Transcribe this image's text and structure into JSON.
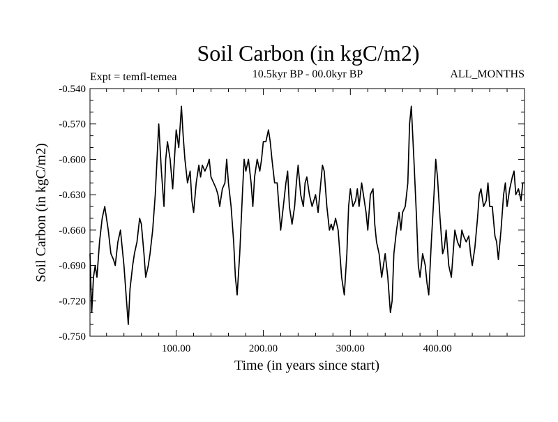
{
  "chart_data": {
    "type": "line",
    "title": "Soil Carbon (in kgC/m2)",
    "subtitle": "10.5kyr BP - 00.0kyr BP",
    "left_label": "Expt = temfl-temea",
    "right_label": "ALL_MONTHS",
    "xlabel": "Time (in years since start)",
    "ylabel": "Soil Carbon (in kgC/m2)",
    "xlim": [
      1,
      500
    ],
    "ylim": [
      -0.75,
      -0.54
    ],
    "x_ticks": [
      100,
      200,
      300,
      400
    ],
    "x_tick_labels": [
      "100.00",
      "200.00",
      "300.00",
      "400.00"
    ],
    "y_ticks": [
      -0.54,
      -0.57,
      -0.6,
      -0.63,
      -0.66,
      -0.69,
      -0.72,
      -0.75
    ],
    "y_tick_labels": [
      "-0.540",
      "-0.570",
      "-0.600",
      "-0.630",
      "-0.660",
      "-0.690",
      "-0.720",
      "-0.750"
    ],
    "series": [
      {
        "name": "Soil Carbon",
        "x": [
          1,
          3,
          5,
          7,
          9,
          12,
          15,
          18,
          20,
          22,
          25,
          28,
          30,
          33,
          36,
          38,
          40,
          43,
          45,
          47,
          50,
          52,
          55,
          58,
          60,
          63,
          65,
          68,
          70,
          73,
          76,
          78,
          80,
          83,
          86,
          88,
          90,
          93,
          96,
          98,
          100,
          103,
          106,
          108,
          110,
          113,
          116,
          118,
          120,
          123,
          126,
          128,
          130,
          133,
          136,
          138,
          140,
          143,
          146,
          148,
          150,
          153,
          156,
          158,
          160,
          163,
          166,
          168,
          170,
          173,
          176,
          178,
          180,
          183,
          186,
          188,
          190,
          193,
          196,
          198,
          200,
          203,
          206,
          208,
          210,
          213,
          216,
          218,
          220,
          223,
          226,
          228,
          230,
          233,
          236,
          238,
          240,
          243,
          246,
          248,
          250,
          253,
          256,
          258,
          260,
          263,
          266,
          268,
          270,
          273,
          276,
          278,
          280,
          283,
          286,
          288,
          290,
          293,
          296,
          298,
          300,
          303,
          306,
          308,
          310,
          313,
          316,
          318,
          320,
          323,
          326,
          328,
          330,
          333,
          336,
          338,
          340,
          343,
          346,
          348,
          350,
          353,
          356,
          358,
          360,
          363,
          366,
          368,
          370,
          373,
          376,
          378,
          380,
          383,
          386,
          388,
          390,
          393,
          396,
          398,
          400,
          403,
          406,
          408,
          410,
          413,
          416,
          418,
          420,
          423,
          426,
          428,
          430,
          433,
          436,
          438,
          440,
          443,
          446,
          448,
          450,
          453,
          456,
          458,
          460,
          463,
          466,
          468,
          470,
          473,
          476,
          478,
          480,
          483,
          486,
          488,
          490,
          493,
          496,
          498,
          500
        ],
        "y": [
          -0.68,
          -0.73,
          -0.7,
          -0.69,
          -0.7,
          -0.67,
          -0.65,
          -0.64,
          -0.65,
          -0.66,
          -0.68,
          -0.685,
          -0.69,
          -0.67,
          -0.66,
          -0.675,
          -0.69,
          -0.72,
          -0.74,
          -0.71,
          -0.69,
          -0.68,
          -0.67,
          -0.65,
          -0.655,
          -0.68,
          -0.7,
          -0.69,
          -0.68,
          -0.66,
          -0.63,
          -0.6,
          -0.57,
          -0.61,
          -0.64,
          -0.6,
          -0.585,
          -0.6,
          -0.625,
          -0.6,
          -0.575,
          -0.59,
          -0.555,
          -0.58,
          -0.6,
          -0.62,
          -0.61,
          -0.635,
          -0.645,
          -0.62,
          -0.605,
          -0.615,
          -0.605,
          -0.61,
          -0.605,
          -0.6,
          -0.615,
          -0.62,
          -0.625,
          -0.63,
          -0.64,
          -0.625,
          -0.62,
          -0.6,
          -0.62,
          -0.64,
          -0.67,
          -0.7,
          -0.715,
          -0.68,
          -0.63,
          -0.6,
          -0.61,
          -0.6,
          -0.62,
          -0.64,
          -0.615,
          -0.6,
          -0.61,
          -0.6,
          -0.585,
          -0.585,
          -0.575,
          -0.585,
          -0.6,
          -0.62,
          -0.62,
          -0.64,
          -0.66,
          -0.64,
          -0.62,
          -0.61,
          -0.64,
          -0.655,
          -0.64,
          -0.62,
          -0.605,
          -0.63,
          -0.64,
          -0.62,
          -0.615,
          -0.63,
          -0.64,
          -0.635,
          -0.63,
          -0.645,
          -0.62,
          -0.605,
          -0.61,
          -0.64,
          -0.66,
          -0.655,
          -0.66,
          -0.65,
          -0.66,
          -0.68,
          -0.7,
          -0.715,
          -0.68,
          -0.64,
          -0.625,
          -0.64,
          -0.635,
          -0.625,
          -0.64,
          -0.62,
          -0.635,
          -0.645,
          -0.66,
          -0.63,
          -0.625,
          -0.655,
          -0.67,
          -0.68,
          -0.7,
          -0.69,
          -0.68,
          -0.7,
          -0.73,
          -0.72,
          -0.68,
          -0.66,
          -0.645,
          -0.66,
          -0.645,
          -0.64,
          -0.62,
          -0.57,
          -0.555,
          -0.6,
          -0.65,
          -0.69,
          -0.7,
          -0.68,
          -0.69,
          -0.705,
          -0.715,
          -0.67,
          -0.63,
          -0.6,
          -0.615,
          -0.65,
          -0.68,
          -0.675,
          -0.66,
          -0.69,
          -0.7,
          -0.68,
          -0.66,
          -0.67,
          -0.675,
          -0.66,
          -0.665,
          -0.67,
          -0.665,
          -0.68,
          -0.69,
          -0.675,
          -0.65,
          -0.63,
          -0.625,
          -0.64,
          -0.635,
          -0.62,
          -0.64,
          -0.64,
          -0.665,
          -0.67,
          -0.685,
          -0.66,
          -0.63,
          -0.62,
          -0.64,
          -0.625,
          -0.615,
          -0.61,
          -0.63,
          -0.625,
          -0.635,
          -0.62,
          -0.62
        ]
      }
    ]
  }
}
